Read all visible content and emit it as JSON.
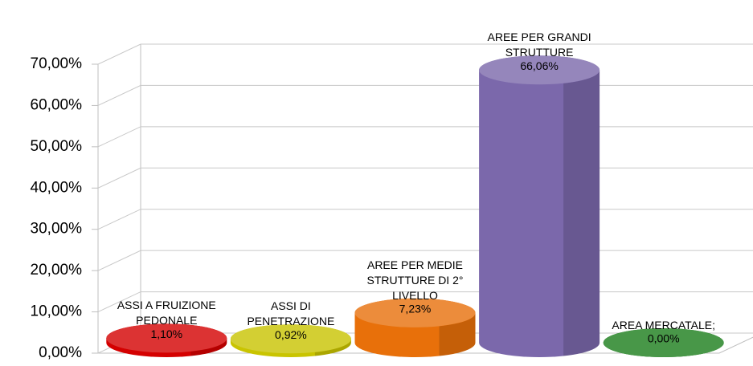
{
  "chart_data": {
    "type": "cylinder",
    "categories": [
      "ASSI A FRUIZIONE PEDONALE",
      "ASSI DI PENETRAZIONE",
      "AREE PER MEDIE STRUTTURE DI 2° LIVELLO",
      "AREE PER GRANDI STRUTTURE",
      "AREA MERCATALE;"
    ],
    "values": [
      1.1,
      0.92,
      7.23,
      66.06,
      0
    ],
    "value_labels": [
      "1,10%",
      "0,92%",
      "7,23%",
      "66,06%",
      "0,00%"
    ],
    "colors": [
      "#d40000",
      "#c9c400",
      "#e8700a",
      "#7b68ab",
      "#1b7d1b"
    ],
    "ylim": [
      0,
      70
    ],
    "yticks": [
      {
        "value": 0,
        "label": "0,00%"
      },
      {
        "value": 10,
        "label": "10,00%"
      },
      {
        "value": 20,
        "label": "20,00%"
      },
      {
        "value": 30,
        "label": "30,00%"
      },
      {
        "value": 40,
        "label": "40,00%"
      },
      {
        "value": 50,
        "label": "50,00%"
      },
      {
        "value": 60,
        "label": "60,00%"
      },
      {
        "value": 70,
        "label": "70,00%"
      }
    ],
    "grid": true
  }
}
